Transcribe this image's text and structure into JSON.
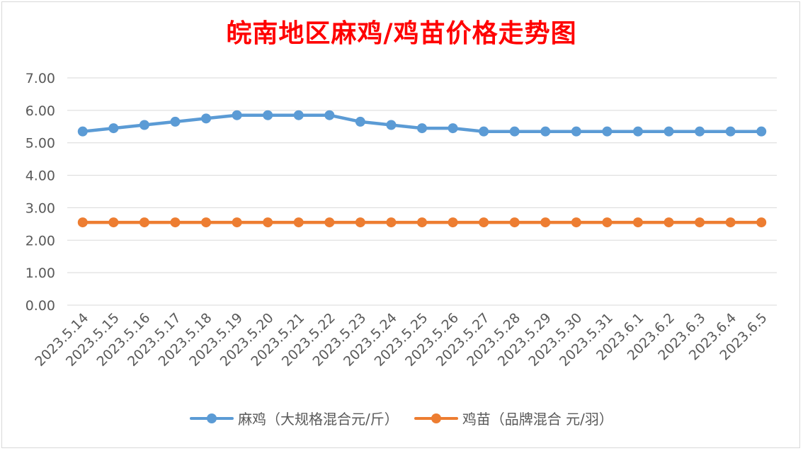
{
  "title": "皖南地区麻鸡/鸡苗价格走势图",
  "chart_data": {
    "type": "line",
    "title": "皖南地区麻鸡/鸡苗价格走势图",
    "categories": [
      "2023.5.14",
      "2023.5.15",
      "2023.5.16",
      "2023.5.17",
      "2023.5.18",
      "2023.5.19",
      "2023.5.20",
      "2023.5.21",
      "2023.5.22",
      "2023.5.23",
      "2023.5.24",
      "2023.5.25",
      "2023.5.26",
      "2023.5.27",
      "2023.5.28",
      "2023.5.29",
      "2023.5.30",
      "2023.5.31",
      "2023.6.1",
      "2023.6.2",
      "2023.6.3",
      "2023.6.4",
      "2023.6.5"
    ],
    "series": [
      {
        "name": "麻鸡（大规格混合元/斤）",
        "color": "#5b9bd5",
        "values": [
          5.35,
          5.45,
          5.55,
          5.65,
          5.75,
          5.85,
          5.85,
          5.85,
          5.85,
          5.65,
          5.55,
          5.45,
          5.45,
          5.35,
          5.35,
          5.35,
          5.35,
          5.35,
          5.35,
          5.35,
          5.35,
          5.35,
          5.35
        ]
      },
      {
        "name": "鸡苗（品牌混合 元/羽）",
        "color": "#ed7d31",
        "values": [
          2.55,
          2.55,
          2.55,
          2.55,
          2.55,
          2.55,
          2.55,
          2.55,
          2.55,
          2.55,
          2.55,
          2.55,
          2.55,
          2.55,
          2.55,
          2.55,
          2.55,
          2.55,
          2.55,
          2.55,
          2.55,
          2.55,
          2.55
        ]
      }
    ],
    "yticks": [
      "0.00",
      "1.00",
      "2.00",
      "3.00",
      "4.00",
      "5.00",
      "6.00",
      "7.00"
    ],
    "ylim": [
      0,
      7
    ],
    "grid": true,
    "legend_position": "bottom"
  }
}
